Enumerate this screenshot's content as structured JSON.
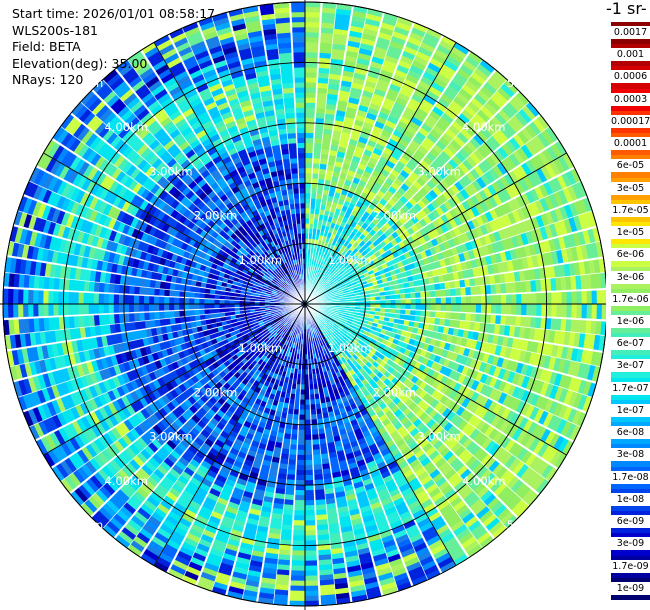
{
  "info": {
    "start_time": "Start time: 2026/01/01 08:58:17",
    "instrument": "WLS200s-181",
    "field": "Field: BETA",
    "elevation": "Elevation(deg): 35.00",
    "nrays": "NRays: 120"
  },
  "colorbar": {
    "title": "-1 sr-",
    "labels": [
      "0.0017",
      "0.001",
      "0.0006",
      "0.0003",
      "0.00017",
      "0.0001",
      "6e-05",
      "3e-05",
      "1.7e-05",
      "1e-05",
      "6e-06",
      "3e-06",
      "1.7e-06",
      "1e-06",
      "6e-07",
      "3e-07",
      "1.7e-07",
      "1e-07",
      "6e-08",
      "3e-08",
      "1.7e-08",
      "1e-08",
      "6e-09",
      "3e-09",
      "1.7e-09",
      "1e-09"
    ],
    "colors": [
      "#8b0000",
      "#b30000",
      "#d40000",
      "#f00000",
      "#ff3300",
      "#ff5a00",
      "#ff8000",
      "#ffa000",
      "#ffc400",
      "#ffe600",
      "#ccff44",
      "#aaf260",
      "#90ee60",
      "#66ee99",
      "#44eebb",
      "#22eedd",
      "#00e5ee",
      "#00c8ff",
      "#00a8ff",
      "#0088ff",
      "#0066ff",
      "#0044ee",
      "#0022dd",
      "#0000cc",
      "#0000a0",
      "#000070"
    ]
  },
  "chart_data": {
    "type": "heatmap",
    "projection": "polar PPI",
    "field": "BETA",
    "units_fragment": "-1 sr-",
    "scale": "log",
    "range_rings": [
      "1.00km",
      "2.00km",
      "3.00km",
      "4.00km",
      "5.00km"
    ],
    "n_rays": 120,
    "elevation_deg": 35.0,
    "sectors": [
      {
        "azimuth_range_deg": [
          0,
          150
        ],
        "level": "1e-06 to 1e-05"
      },
      {
        "azimuth_range_deg": [
          150,
          360
        ],
        "level": "1e-09 to 1e-07"
      }
    ]
  }
}
